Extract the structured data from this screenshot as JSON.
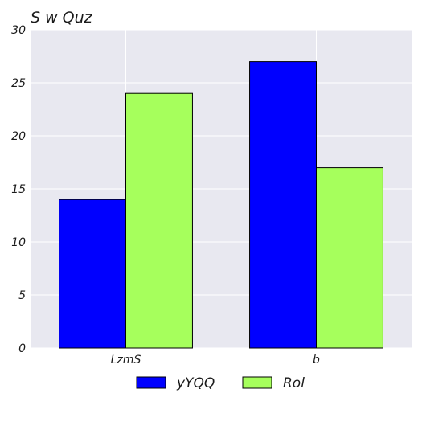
{
  "chart_data": {
    "type": "bar",
    "title": "S w Quz",
    "xlabel": "",
    "ylabel": "",
    "categories": [
      "LzmS",
      "b"
    ],
    "series": [
      {
        "name": "yYQQ",
        "values": [
          14,
          27
        ],
        "color": "#0000ff"
      },
      {
        "name": "Rol",
        "values": [
          24,
          17
        ],
        "color": "#a6ff5c"
      }
    ],
    "ylim": [
      0,
      30
    ],
    "yticks": [
      0,
      5,
      10,
      15,
      20,
      25,
      30
    ],
    "grid": true,
    "legend": "bottom-center",
    "background": "#e8e8f0"
  }
}
